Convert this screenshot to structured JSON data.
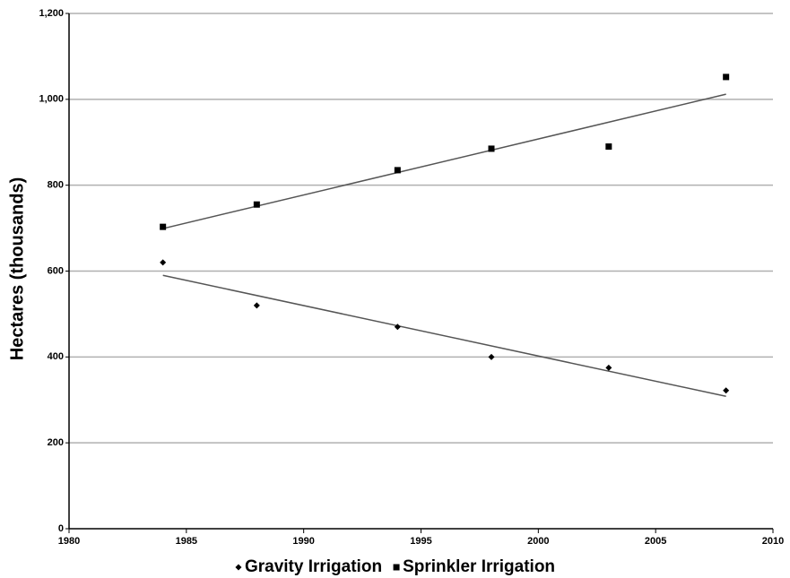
{
  "chart_data": {
    "type": "scatter",
    "y_label": "Hectares (thousands)",
    "x": [
      1984,
      1988,
      1994,
      1998,
      2003,
      2008
    ],
    "series": [
      {
        "name": "Gravity Irrigation",
        "color": "#000000",
        "marker": "diamond",
        "values": [
          620,
          520,
          470,
          400,
          375,
          322
        ]
      },
      {
        "name": "Sprinkler Irrigation",
        "color": "#000000",
        "marker": "square",
        "values": [
          703,
          755,
          835,
          885,
          890,
          1052
        ]
      }
    ],
    "trendline": "linear",
    "trendline_color": "#555555",
    "xlim": [
      1980,
      2010
    ],
    "xticks": [
      1980,
      1985,
      1990,
      1995,
      2000,
      2005,
      2010
    ],
    "ylim": [
      0,
      1200
    ],
    "yticks": [
      0,
      200,
      400,
      600,
      800,
      {
        "value": 1000,
        "label": "1,000"
      },
      {
        "value": 1200,
        "label": "1,200"
      }
    ],
    "grid": true,
    "legend": "bottom"
  }
}
